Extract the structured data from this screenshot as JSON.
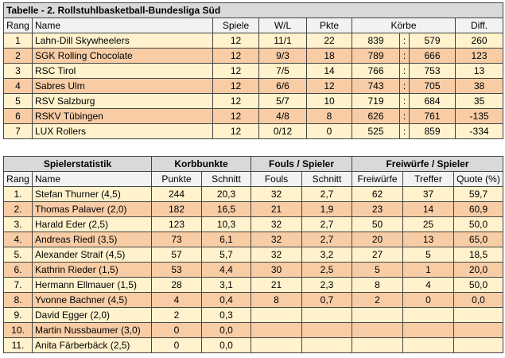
{
  "league": {
    "title": "Tabelle - 2. Rollstuhlbasketball-Bundesliga Süd",
    "headers": {
      "rang": "Rang",
      "name": "Name",
      "spiele": "Spiele",
      "wl": "W/L",
      "pkte": "Pkte",
      "koerbe": "Körbe",
      "diff": "Diff."
    },
    "sep": ":",
    "rows": [
      {
        "rang": "1",
        "name": "Lahn-Dill Skywheelers",
        "spiele": "12",
        "wl": "11/1",
        "pkte": "22",
        "for": "839",
        "against": "579",
        "diff": "260"
      },
      {
        "rang": "2",
        "name": "SGK Rolling Chocolate",
        "spiele": "12",
        "wl": "9/3",
        "pkte": "18",
        "for": "789",
        "against": "666",
        "diff": "123"
      },
      {
        "rang": "3",
        "name": "RSC Tirol",
        "spiele": "12",
        "wl": "7/5",
        "pkte": "14",
        "for": "766",
        "against": "753",
        "diff": "13"
      },
      {
        "rang": "4",
        "name": "Sabres Ulm",
        "spiele": "12",
        "wl": "6/6",
        "pkte": "12",
        "for": "743",
        "against": "705",
        "diff": "38"
      },
      {
        "rang": "5",
        "name": "RSV Salzburg",
        "spiele": "12",
        "wl": "5/7",
        "pkte": "10",
        "for": "719",
        "against": "684",
        "diff": "35"
      },
      {
        "rang": "6",
        "name": "RSKV Tübingen",
        "spiele": "12",
        "wl": "4/8",
        "pkte": "8",
        "for": "626",
        "against": "761",
        "diff": "-135"
      },
      {
        "rang": "7",
        "name": "LUX Rollers",
        "spiele": "12",
        "wl": "0/12",
        "pkte": "0",
        "for": "525",
        "against": "859",
        "diff": "-334"
      }
    ]
  },
  "players": {
    "groups": {
      "stat": "Spielerstatistik",
      "korb": "Korbbunkte",
      "fouls": "Fouls / Spieler",
      "frei": "Freiwürfe / Spieler"
    },
    "headers": {
      "rang": "Rang",
      "name": "Name",
      "punkte": "Punkte",
      "schnitt": "Schnitt",
      "fouls": "Fouls",
      "fschnitt": "Schnitt",
      "freiwuerfe": "Freiwürfe",
      "treffer": "Treffer",
      "quote": "Quote (%)"
    },
    "rows": [
      {
        "rang": "1.",
        "name": "Stefan Thurner (4,5)",
        "punkte": "244",
        "schnitt": "20,3",
        "fouls": "32",
        "fschnitt": "2,7",
        "fw": "62",
        "treffer": "37",
        "quote": "59,7"
      },
      {
        "rang": "2.",
        "name": "Thomas Palaver (2,0)",
        "punkte": "182",
        "schnitt": "16,5",
        "fouls": "21",
        "fschnitt": "1,9",
        "fw": "23",
        "treffer": "14",
        "quote": "60,9"
      },
      {
        "rang": "3.",
        "name": "Harald Eder (2,5)",
        "punkte": "123",
        "schnitt": "10,3",
        "fouls": "32",
        "fschnitt": "2,7",
        "fw": "50",
        "treffer": "25",
        "quote": "50,0"
      },
      {
        "rang": "4.",
        "name": "Andreas Riedl (3,5)",
        "punkte": "73",
        "schnitt": "6,1",
        "fouls": "32",
        "fschnitt": "2,7",
        "fw": "20",
        "treffer": "13",
        "quote": "65,0"
      },
      {
        "rang": "5.",
        "name": "Alexander Straif (4,5)",
        "punkte": "57",
        "schnitt": "5,7",
        "fouls": "32",
        "fschnitt": "3,2",
        "fw": "27",
        "treffer": "5",
        "quote": "18,5"
      },
      {
        "rang": "6.",
        "name": "Kathrin Rieder (1,5)",
        "punkte": "53",
        "schnitt": "4,4",
        "fouls": "30",
        "fschnitt": "2,5",
        "fw": "5",
        "treffer": "1",
        "quote": "20,0"
      },
      {
        "rang": "7.",
        "name": "Hermann Ellmauer (1,5)",
        "punkte": "28",
        "schnitt": "3,1",
        "fouls": "21",
        "fschnitt": "2,3",
        "fw": "8",
        "treffer": "4",
        "quote": "50,0"
      },
      {
        "rang": "8.",
        "name": "Yvonne Bachner (4,5)",
        "punkte": "4",
        "schnitt": "0,4",
        "fouls": "8",
        "fschnitt": "0,7",
        "fw": "2",
        "treffer": "0",
        "quote": "0,0"
      },
      {
        "rang": "9.",
        "name": "David Egger (2,0)",
        "punkte": "2",
        "schnitt": "0,3",
        "fouls": "",
        "fschnitt": "",
        "fw": "",
        "treffer": "",
        "quote": ""
      },
      {
        "rang": "10.",
        "name": "Martin Nussbaumer (3,0)",
        "punkte": "0",
        "schnitt": "0,0",
        "fouls": "",
        "fschnitt": "",
        "fw": "",
        "treffer": "",
        "quote": ""
      },
      {
        "rang": "11.",
        "name": "Anita Färberbäck (2,5)",
        "punkte": "0",
        "schnitt": "0,0",
        "fouls": "",
        "fschnitt": "",
        "fw": "",
        "treffer": "",
        "quote": ""
      }
    ]
  },
  "colors": {
    "row_light": "#FFF2CC",
    "row_dark": "#F8CDA6",
    "header": "#D9D9D9",
    "subheader": "#F2F2F2"
  }
}
